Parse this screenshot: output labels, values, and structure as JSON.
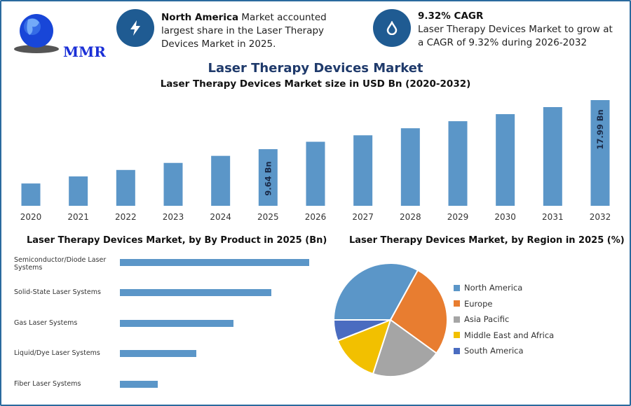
{
  "logo": {
    "text": "MMR"
  },
  "info_cards": [
    {
      "icon": "lightning-icon",
      "bold": "North America",
      "text": " Market accounted largest share in the Laser Therapy Devices Market in 2025."
    },
    {
      "icon": "drop-icon",
      "bold": "9.32% CAGR",
      "text": "Laser Therapy Devices Market to grow at a CAGR of 9.32% during 2026-2032"
    }
  ],
  "title": "Laser Therapy Devices Market",
  "chart_data": [
    {
      "type": "bar",
      "title": "Laser Therapy Devices Market size in USD Bn (2020-2032)",
      "categories": [
        "2020",
        "2021",
        "2022",
        "2023",
        "2024",
        "2025",
        "2026",
        "2027",
        "2028",
        "2029",
        "2030",
        "2031",
        "2032"
      ],
      "values": [
        3.8,
        5.0,
        6.1,
        7.3,
        8.5,
        9.64,
        10.9,
        12.0,
        13.2,
        14.4,
        15.6,
        16.8,
        17.99
      ],
      "data_labels": {
        "2025": "9.64 Bn",
        "2032": "17.99 Bn"
      },
      "color": "#5b96c8",
      "ylim": [
        0,
        18.5
      ],
      "grid": false
    },
    {
      "type": "bar",
      "orientation": "horizontal",
      "title": "Laser Therapy Devices Market, by By Product in 2025 (Bn)",
      "categories": [
        "Semiconductor/Diode Laser Systems",
        "Solid-State Laser Systems",
        "Gas Laser Systems",
        "Liquid/Dye Laser Systems",
        "Fiber Laser Systems"
      ],
      "values": [
        3.21,
        2.57,
        1.93,
        1.29,
        0.64
      ],
      "color": "#5b96c8"
    },
    {
      "type": "pie",
      "title": "Laser Therapy Devices Market, by Region in 2025 (%)",
      "categories": [
        "North America",
        "Europe",
        "Asia Pacific",
        "Middle East and Africa",
        "South America"
      ],
      "values": [
        33,
        27,
        20,
        14,
        6
      ],
      "colors": [
        "#5b96c8",
        "#e87d30",
        "#a5a5a5",
        "#f2c000",
        "#4a6cc0"
      ],
      "legend": "right"
    }
  ]
}
